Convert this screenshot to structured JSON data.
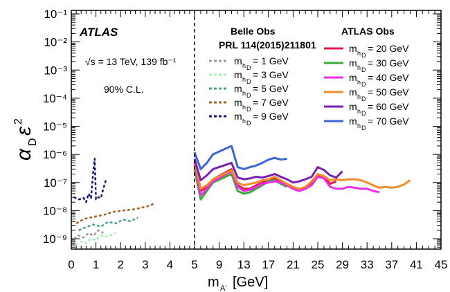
{
  "chart_data": {
    "type": "line",
    "experiment_label": "ATLAS",
    "energy_label": "√s = 13 TeV, 139 fb⁻¹",
    "cl_label": "90% C.L.",
    "xlabel": "m_{A'} [GeV]",
    "ylabel": "α_D ε²",
    "xlim": [
      0,
      45
    ],
    "ylim": [
      5e-10,
      0.1
    ],
    "y_scale": "log",
    "x_ticks": [
      "0",
      "1",
      "2",
      "3",
      "4",
      "5",
      "9",
      "13",
      "17",
      "21",
      "25",
      "29",
      "33",
      "37",
      "41",
      "45"
    ],
    "y_ticks": [
      "10⁻⁹",
      "10⁻⁸",
      "10⁻⁷",
      "10⁻⁶",
      "10⁻⁵",
      "10⁻⁴",
      "10⁻³",
      "10⁻²",
      "10⁻¹"
    ],
    "vline_x": 5,
    "legend_belle_title": "Belle Obs",
    "legend_belle_ref": "PRL 114(2015)211801",
    "legend_atlas_title": "ATLAS Obs",
    "series": [
      {
        "name": "m_hD = 1 GeV",
        "group": "belle",
        "style": "dashed",
        "color": "#999999",
        "x": [
          0.1,
          0.3,
          0.5,
          0.7,
          0.9,
          1.1,
          1.3
        ],
        "y": [
          1e-09,
          1.3e-09,
          1.1e-09,
          1.6e-09,
          1.3e-09,
          2e-09,
          1.6e-09
        ]
      },
      {
        "name": "m_hD = 3 GeV",
        "group": "belle",
        "style": "dashed",
        "color": "#a8f0b0",
        "x": [
          0.2,
          0.4,
          0.6,
          0.8,
          1.0,
          1.2,
          1.5,
          1.8
        ],
        "y": [
          6e-10,
          8e-10,
          7e-10,
          1e-09,
          9e-10,
          1.3e-09,
          1.2e-09,
          1.6e-09
        ]
      },
      {
        "name": "m_hD = 5 GeV",
        "group": "belle",
        "style": "dashed",
        "color": "#4a9e95",
        "x": [
          0.3,
          0.6,
          0.9,
          1.2,
          1.5,
          1.8,
          2.1,
          2.4,
          2.7
        ],
        "y": [
          2e-09,
          2.6e-09,
          3.2e-09,
          2.7e-09,
          4e-09,
          3.5e-09,
          4.8e-09,
          4.2e-09,
          5.6e-09
        ]
      },
      {
        "name": "m_hD = 7 GeV",
        "group": "belle",
        "style": "dashed",
        "color": "#a0622a",
        "x": [
          0.2,
          0.5,
          0.9,
          1.3,
          1.7,
          2.1,
          2.5,
          2.9,
          3.2,
          3.4
        ],
        "y": [
          3.5e-09,
          5e-09,
          6e-09,
          7e-09,
          9e-09,
          1e-08,
          1.1e-08,
          1.3e-08,
          1.5e-08,
          1.9e-08
        ]
      },
      {
        "name": "m_hD = 9 GeV",
        "group": "belle",
        "style": "dashed",
        "color": "#0d1670",
        "x": [
          0.1,
          0.3,
          0.5,
          0.6,
          0.7,
          0.8,
          0.9,
          0.95,
          1.0,
          1.1,
          1.2,
          1.3,
          1.4
        ],
        "y": [
          3e-08,
          2.5e-08,
          2.8e-08,
          2e-08,
          4e-08,
          2.8e-08,
          3e-07,
          7e-07,
          2.5e-08,
          3e-08,
          2.8e-08,
          6e-08,
          1.2e-07
        ]
      },
      {
        "name": "m_hD = 20 GeV",
        "group": "atlas",
        "style": "solid",
        "color": "#e01b4c",
        "x": [
          5,
          6,
          7,
          8,
          11,
          12,
          13,
          14,
          15,
          16,
          17,
          18,
          19,
          20,
          21,
          22,
          23,
          24,
          25,
          26,
          27,
          28
        ],
        "y": [
          4e-07,
          5e-08,
          7e-08,
          1.3e-07,
          3e-07,
          8e-08,
          6e-08,
          6e-08,
          8e-08,
          1e-07,
          1.2e-07,
          1.4e-07,
          1.1e-07,
          8e-08,
          6e-08,
          5e-08,
          6e-08,
          9e-08,
          1.8e-07,
          1.6e-07,
          9e-08,
          1.1e-07
        ]
      },
      {
        "name": "m_hD = 30 GeV",
        "group": "atlas",
        "style": "solid",
        "color": "#3aaa3a",
        "x": [
          5,
          6,
          7,
          8,
          11,
          12,
          13,
          14,
          15,
          16,
          17,
          18,
          19,
          20
        ],
        "y": [
          3e-07,
          2.5e-08,
          5e-08,
          1e-07,
          2e-07,
          5e-08,
          4e-08,
          4.5e-08,
          6e-08,
          8e-08,
          1.1e-07,
          1.2e-07,
          9e-08,
          7e-08
        ]
      },
      {
        "name": "m_hD = 40 GeV",
        "group": "atlas",
        "style": "solid",
        "color": "#ee2ee6",
        "x": [
          5,
          6,
          7,
          8,
          11,
          12,
          13,
          14,
          15,
          16,
          17,
          18,
          19,
          20,
          21,
          22,
          23,
          24,
          25,
          26,
          27,
          28,
          29,
          30,
          31,
          32,
          33,
          34,
          35
        ],
        "y": [
          5e-07,
          3.5e-08,
          6e-08,
          1.1e-07,
          2.5e-07,
          7e-08,
          5e-08,
          5.5e-08,
          7e-08,
          9e-08,
          1e-07,
          1.1e-07,
          1e-07,
          8e-08,
          6e-08,
          5e-08,
          6e-08,
          8e-08,
          1.6e-07,
          1.4e-07,
          7e-08,
          6e-08,
          6e-08,
          7e-08,
          6.5e-08,
          6e-08,
          6e-08,
          5e-08,
          4.5e-08
        ]
      },
      {
        "name": "m_hD = 50 GeV",
        "group": "atlas",
        "style": "solid",
        "color": "#f28c28",
        "x": [
          5,
          6,
          7,
          8,
          11,
          12,
          13,
          14,
          15,
          16,
          17,
          18,
          19,
          20,
          21,
          22,
          23,
          24,
          25,
          26,
          27,
          28,
          29,
          30,
          31,
          32,
          33,
          34,
          35,
          36,
          37,
          38,
          39,
          40
        ],
        "y": [
          6e-07,
          6e-08,
          8e-08,
          1.3e-07,
          2.7e-07,
          1e-07,
          8e-08,
          9e-08,
          1e-07,
          1.2e-07,
          1.3e-07,
          1.6e-07,
          1.2e-07,
          9e-08,
          7e-08,
          6e-08,
          7e-08,
          1.1e-07,
          2e-07,
          1.7e-07,
          1.2e-07,
          1.3e-07,
          1.2e-07,
          1.3e-07,
          1.3e-07,
          1.2e-07,
          1e-07,
          8e-08,
          6.5e-08,
          7e-08,
          6.5e-08,
          7e-08,
          8.5e-08,
          1.2e-07
        ]
      },
      {
        "name": "m_hD = 60 GeV",
        "group": "atlas",
        "style": "solid",
        "color": "#7a1fb4",
        "x": [
          5,
          6,
          7,
          8,
          11,
          12,
          13,
          14,
          15,
          16,
          17,
          18,
          19,
          20,
          21,
          22,
          23,
          24,
          25,
          26,
          27,
          28,
          29
        ],
        "y": [
          7e-07,
          1.2e-07,
          1.8e-07,
          3e-07,
          5e-07,
          1.5e-07,
          1.3e-07,
          1.4e-07,
          1.6e-07,
          1.5e-07,
          1.7e-07,
          2e-07,
          1.6e-07,
          1.3e-07,
          1e-07,
          1.1e-07,
          1.3e-07,
          1.6e-07,
          3.5e-07,
          2.8e-07,
          1.8e-07,
          1.5e-07,
          2.5e-07
        ]
      },
      {
        "name": "m_hD = 70 GeV",
        "group": "atlas",
        "style": "solid",
        "color": "#3b64d8",
        "x": [
          5,
          6,
          7,
          8,
          11,
          12,
          13,
          14,
          15,
          16,
          17,
          18,
          19,
          20
        ],
        "y": [
          1.2e-06,
          3e-07,
          5e-07,
          1e-06,
          2e-06,
          3.5e-07,
          3e-07,
          3.5e-07,
          4e-07,
          5e-07,
          6.5e-07,
          7.5e-07,
          6.5e-07,
          7e-07
        ]
      }
    ]
  }
}
